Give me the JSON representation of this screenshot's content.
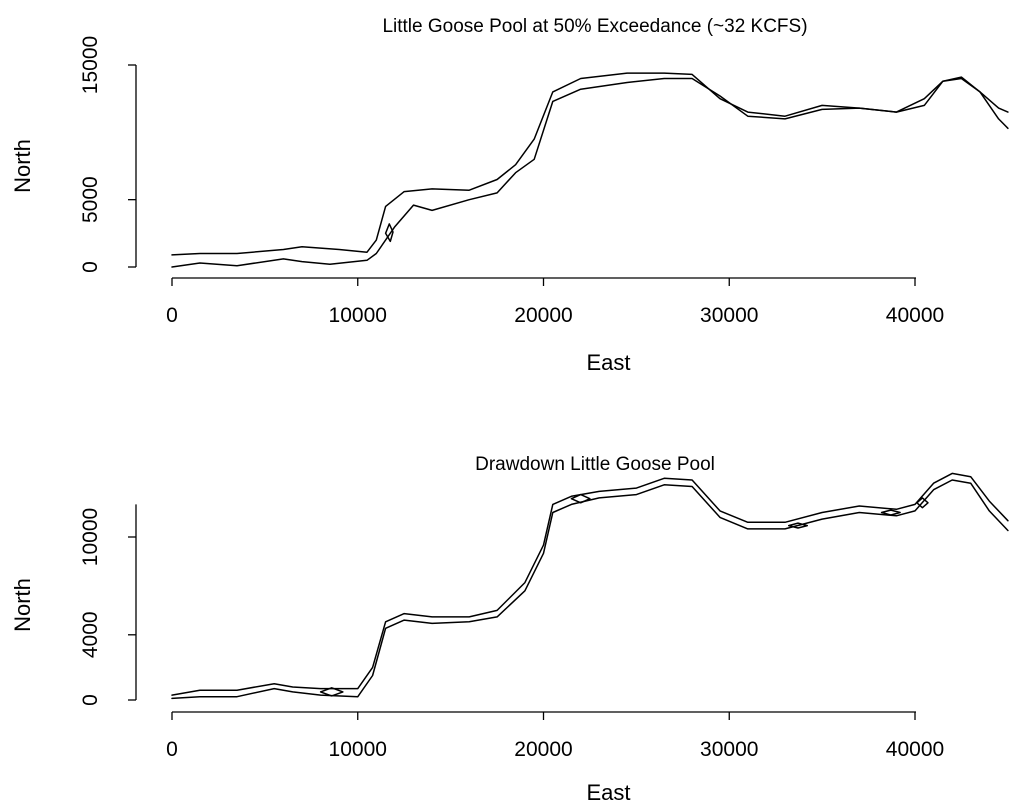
{
  "chart_data": [
    {
      "type": "line",
      "title": "Little Goose Pool at 50% Exceedance (~32 KCFS)",
      "xlabel": "East",
      "ylabel": "North",
      "xlim": [
        0,
        45000
      ],
      "ylim": [
        0,
        15000
      ],
      "x_ticks": [
        "0",
        "10000",
        "20000",
        "30000",
        "40000"
      ],
      "y_ticks": [
        "0",
        "5000",
        "15000"
      ],
      "grid": false,
      "series": [
        {
          "role": "north-bank",
          "x": [
            0,
            1500,
            3500,
            6000,
            7000,
            9000,
            10500,
            11000,
            11500,
            12500,
            14000,
            16000,
            17500,
            18500,
            19500,
            20500,
            22000,
            24500,
            26500,
            28000,
            29500,
            31000,
            33000,
            35000,
            37000,
            39000,
            40500,
            41500,
            42500,
            43500,
            44500,
            45000
          ],
          "y": [
            900,
            1000,
            1000,
            1300,
            1500,
            1300,
            1100,
            2000,
            4500,
            5600,
            5800,
            5700,
            6500,
            7600,
            9500,
            13000,
            14000,
            14400,
            14400,
            14300,
            12500,
            11500,
            11200,
            12000,
            11800,
            11500,
            12000,
            13800,
            14100,
            13000,
            11800,
            11500
          ]
        },
        {
          "role": "south-bank",
          "x": [
            0,
            1500,
            3500,
            6000,
            7000,
            8500,
            10500,
            11000,
            12000,
            13000,
            14000,
            16000,
            17500,
            18500,
            19500,
            20500,
            22000,
            24500,
            26500,
            28000,
            29500,
            31000,
            33000,
            35000,
            37000,
            39000,
            40500,
            41500,
            42500,
            43500,
            44500,
            45000
          ],
          "y": [
            0,
            300,
            100,
            600,
            400,
            200,
            500,
            1000,
            3000,
            4600,
            4200,
            5000,
            5500,
            7000,
            8000,
            12300,
            13200,
            13700,
            14000,
            14000,
            12700,
            11200,
            11000,
            11700,
            11800,
            11500,
            12500,
            13800,
            14000,
            13000,
            11000,
            10300
          ]
        },
        {
          "role": "island",
          "x": [
            11500,
            11700,
            11900,
            11750,
            11500
          ],
          "y": [
            2500,
            3200,
            2600,
            1900,
            2500
          ]
        }
      ]
    },
    {
      "type": "line",
      "title": "Drawdown Little Goose Pool",
      "xlabel": "East",
      "ylabel": "North",
      "xlim": [
        0,
        45000
      ],
      "ylim": [
        0,
        14000
      ],
      "x_ticks": [
        "0",
        "10000",
        "20000",
        "30000",
        "40000"
      ],
      "y_ticks": [
        "0",
        "4000",
        "10000"
      ],
      "grid": false,
      "series": [
        {
          "role": "north-bank",
          "x": [
            0,
            1500,
            3500,
            5500,
            6500,
            8000,
            10000,
            10800,
            11500,
            12500,
            14000,
            16000,
            17500,
            19000,
            20000,
            20500,
            21500,
            23000,
            25000,
            26500,
            28000,
            29500,
            31000,
            33000,
            35000,
            37000,
            39000,
            40000,
            41000,
            42000,
            43000,
            44000,
            45000
          ],
          "y": [
            300,
            600,
            600,
            1000,
            800,
            700,
            700,
            2000,
            4800,
            5300,
            5100,
            5100,
            5500,
            7200,
            9500,
            12000,
            12500,
            12800,
            13000,
            13600,
            13500,
            11600,
            10900,
            10900,
            11500,
            11900,
            11700,
            12000,
            13300,
            13900,
            13700,
            12200,
            11000
          ]
        },
        {
          "role": "south-bank",
          "x": [
            0,
            1500,
            3500,
            5500,
            6500,
            8000,
            10000,
            10800,
            11500,
            12500,
            14000,
            16000,
            17500,
            19000,
            20000,
            20500,
            21500,
            23000,
            25000,
            26500,
            28000,
            29500,
            31000,
            33000,
            35000,
            37000,
            39000,
            40000,
            41000,
            42000,
            43000,
            44000,
            45000
          ],
          "y": [
            100,
            200,
            200,
            700,
            500,
            300,
            200,
            1500,
            4400,
            4900,
            4700,
            4800,
            5100,
            6700,
            9000,
            11500,
            12000,
            12400,
            12600,
            13200,
            13100,
            11200,
            10500,
            10500,
            11100,
            11500,
            11300,
            11600,
            12900,
            13500,
            13300,
            11600,
            10400
          ]
        },
        {
          "role": "island",
          "x": [
            8000,
            8600,
            9200,
            8600,
            8000
          ],
          "y": [
            500,
            750,
            500,
            250,
            500
          ]
        },
        {
          "role": "island",
          "x": [
            21500,
            22000,
            22500,
            22000,
            21500
          ],
          "y": [
            12350,
            12600,
            12350,
            12100,
            12350
          ]
        },
        {
          "role": "island",
          "x": [
            33200,
            33700,
            34200,
            33700,
            33200
          ],
          "y": [
            10700,
            10850,
            10700,
            10550,
            10700
          ]
        },
        {
          "role": "island",
          "x": [
            38200,
            38700,
            39200,
            38700,
            38200
          ],
          "y": [
            11500,
            11650,
            11500,
            11350,
            11500
          ]
        },
        {
          "role": "island",
          "x": [
            40100,
            40400,
            40700,
            40400,
            40100
          ],
          "y": [
            12100,
            12400,
            12100,
            11800,
            12100
          ]
        }
      ]
    }
  ]
}
